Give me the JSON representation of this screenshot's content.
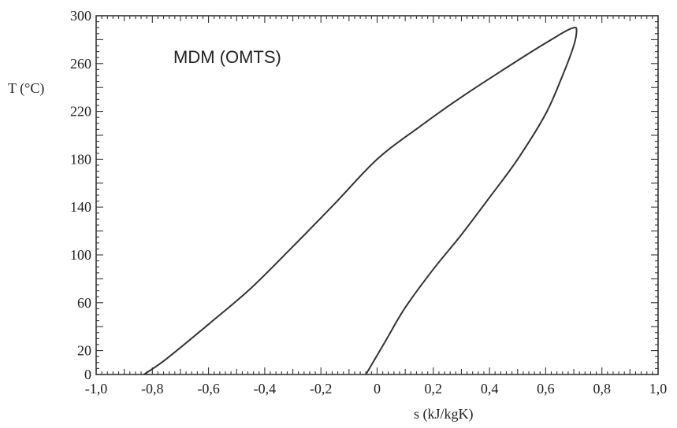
{
  "chart_data": {
    "type": "line",
    "title": "MDM (OMTS)",
    "xlabel": "s (kJ/kgK)",
    "ylabel": "T (°C)",
    "xlim": [
      -1.0,
      1.0
    ],
    "ylim": [
      0,
      300
    ],
    "x_ticks": [
      "-1,0",
      "-0,8",
      "-0,6",
      "-0,4",
      "-0,2",
      "0",
      "0,2",
      "0,4",
      "0,6",
      "0,8",
      "1,0"
    ],
    "y_ticks": [
      "0",
      "20",
      "60",
      "100",
      "140",
      "180",
      "220",
      "260",
      "300"
    ],
    "grid": false,
    "series": [
      {
        "x": [
          -0.83,
          -0.75,
          -0.6,
          -0.45,
          -0.3,
          -0.15,
          0.0,
          0.15,
          0.3,
          0.45,
          0.55,
          0.62,
          0.67,
          0.7,
          0.71,
          0.7,
          0.66,
          0.6,
          0.5,
          0.4,
          0.3,
          0.2,
          0.1,
          0.03,
          -0.02,
          -0.04
        ],
        "y": [
          0,
          13,
          42,
          72,
          107,
          143,
          180,
          207,
          232,
          255,
          270,
          280,
          287,
          290,
          288,
          275,
          250,
          218,
          180,
          148,
          117,
          88,
          56,
          28,
          8,
          0
        ]
      }
    ]
  }
}
